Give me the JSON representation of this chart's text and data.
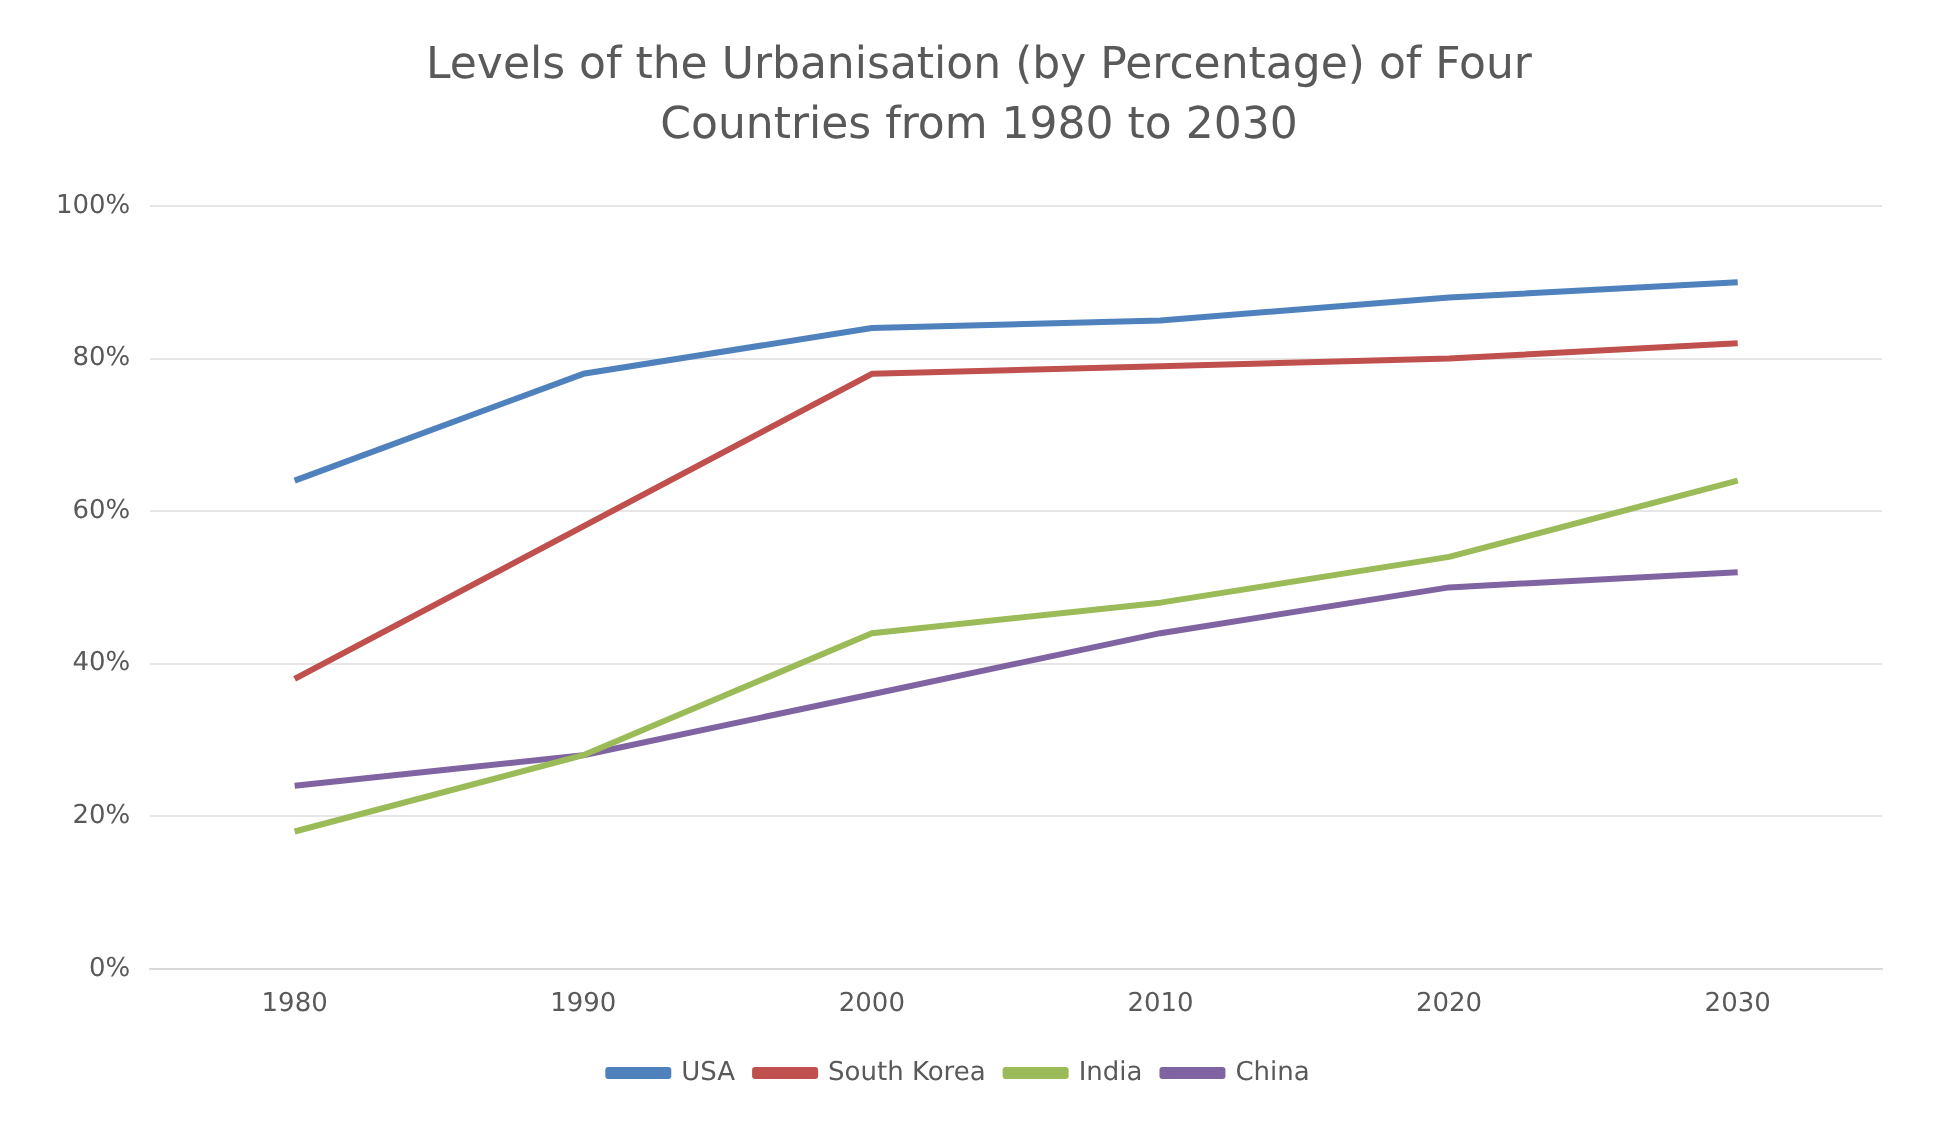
{
  "chart_data": {
    "type": "line",
    "title": "Levels of the Urbanisation (by Percentage) of Four Countries from 1980 to 2030",
    "categories": [
      "1980",
      "1990",
      "2000",
      "2010",
      "2020",
      "2030"
    ],
    "series": [
      {
        "name": "USA",
        "color": "#4f81bd",
        "values": [
          64,
          78,
          84,
          85,
          88,
          90
        ]
      },
      {
        "name": "South Korea",
        "color": "#c0504d",
        "values": [
          38,
          58,
          78,
          79,
          80,
          82
        ]
      },
      {
        "name": "India",
        "color": "#9bbb59",
        "values": [
          18,
          28,
          44,
          48,
          54,
          64
        ]
      },
      {
        "name": "China",
        "color": "#8064a2",
        "values": [
          24,
          28,
          36,
          44,
          50,
          52
        ]
      }
    ],
    "ylim": [
      0,
      100
    ],
    "yticks": [
      {
        "value": 0,
        "label": "0%"
      },
      {
        "value": 20,
        "label": "20%"
      },
      {
        "value": 40,
        "label": "40%"
      },
      {
        "value": 60,
        "label": "60%"
      },
      {
        "value": 80,
        "label": "80%"
      },
      {
        "value": 100,
        "label": "100%"
      }
    ],
    "grid": "y",
    "legend": "bottom",
    "marker": "none",
    "line_style": "solid"
  }
}
